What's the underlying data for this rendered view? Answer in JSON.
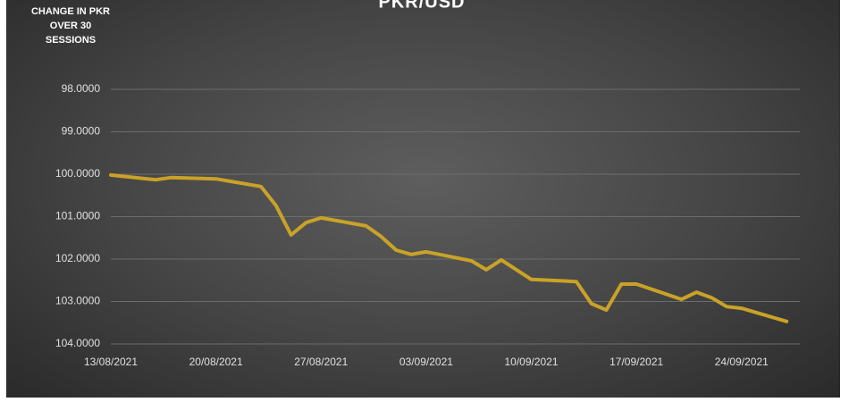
{
  "chart_data": {
    "type": "line",
    "title": "PKR/USD",
    "y_axis_title": "CHANGE IN PKR OVER 30 SESSIONS",
    "x": [
      "13/08/2021",
      "16/08/2021",
      "17/08/2021",
      "20/08/2021",
      "23/08/2021",
      "24/08/2021",
      "25/08/2021",
      "26/08/2021",
      "27/08/2021",
      "30/08/2021",
      "31/08/2021",
      "01/09/2021",
      "02/09/2021",
      "03/09/2021",
      "06/09/2021",
      "07/09/2021",
      "08/09/2021",
      "10/09/2021",
      "13/09/2021",
      "14/09/2021",
      "15/09/2021",
      "16/09/2021",
      "17/09/2021",
      "20/09/2021",
      "21/09/2021",
      "22/09/2021",
      "23/09/2021",
      "24/09/2021",
      "27/09/2021"
    ],
    "values": [
      100.02,
      100.13,
      100.08,
      100.11,
      100.29,
      100.74,
      101.43,
      101.14,
      101.03,
      101.22,
      101.47,
      101.79,
      101.89,
      101.83,
      102.04,
      102.25,
      102.02,
      102.48,
      102.53,
      103.05,
      103.2,
      102.59,
      102.59,
      102.95,
      102.78,
      102.91,
      103.12,
      103.16,
      103.47
    ],
    "color": "#c9a227",
    "xlim": [
      "13/08/2021",
      "28/09/2021"
    ],
    "xticks": [
      "13/08/2021",
      "20/08/2021",
      "27/08/2021",
      "03/09/2021",
      "10/09/2021",
      "17/09/2021",
      "24/09/2021"
    ],
    "ylim": [
      98,
      104
    ],
    "y_reversed": true,
    "yticks": [
      {
        "value": 98,
        "label": "98.0000"
      },
      {
        "value": 99,
        "label": "99.0000"
      },
      {
        "value": 100,
        "label": "100.0000"
      },
      {
        "value": 101,
        "label": "101.0000"
      },
      {
        "value": 102,
        "label": "102.0000"
      },
      {
        "value": 103,
        "label": "103.0000"
      },
      {
        "value": 104,
        "label": "104.0000"
      }
    ],
    "grid": true
  }
}
